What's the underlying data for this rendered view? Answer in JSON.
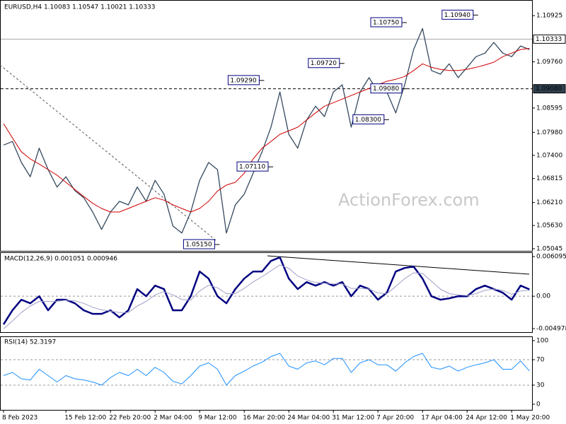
{
  "chart_data": [
    {
      "type": "line",
      "title": "EURUSD,H4  1.10083 1.10547 1.10021 1.10333",
      "watermark": "ActionForex.com",
      "categories": [
        "8 Feb 2023",
        null,
        null,
        null,
        null,
        null,
        null,
        "15 Feb 12:00",
        null,
        null,
        null,
        null,
        "22 Feb 20:00",
        null,
        null,
        null,
        null,
        "2 Mar 04:00",
        null,
        null,
        null,
        null,
        "9 Mar 12:00",
        null,
        null,
        null,
        null,
        "16 Mar 20:00",
        null,
        null,
        null,
        null,
        "24 Mar 04:00",
        null,
        null,
        null,
        null,
        "31 Mar 12:00",
        null,
        null,
        null,
        null,
        "7 Apr 20:00",
        null,
        null,
        null,
        null,
        "17 Apr 04:00",
        null,
        null,
        null,
        null,
        "24 Apr 12:00",
        null,
        null,
        null,
        null,
        "1 May 20:00",
        null,
        null
      ],
      "ylim": [
        1.0499,
        1.1132
      ],
      "yticks": [
        1.10925,
        {
          "value": 1.0976,
          "label": "1.09760"
        },
        1.08595,
        {
          "value": 1.0798,
          "label": "1.07980"
        },
        {
          "value": 1.074,
          "label": "1.07400"
        },
        1.06815,
        {
          "value": 1.0621,
          "label": "1.06210"
        },
        {
          "value": 1.0563,
          "label": "1.05630"
        },
        1.05045
      ],
      "hlines": [
        {
          "value": 1.10333,
          "label": "1.10333",
          "style": "solid"
        },
        {
          "value": 1.0908,
          "label": "1.09080",
          "style": "dashed"
        }
      ],
      "annotations": [
        {
          "x": 24,
          "value": 1.0515,
          "label": "1.05150"
        },
        {
          "x": 30,
          "value": 1.0711,
          "label": "1.07110"
        },
        {
          "x": 29,
          "value": 1.0929,
          "label": "1.09290"
        },
        {
          "x": 38,
          "value": 1.0972,
          "label": "1.09720"
        },
        {
          "x": 43,
          "value": 1.083,
          "label": "1.08300"
        },
        {
          "x": 45,
          "value": 1.0908,
          "label": "1.09080"
        },
        {
          "x": 45,
          "value": 1.1075,
          "label": "1.10750"
        },
        {
          "x": 53,
          "value": 1.1094,
          "label": "1.10940"
        }
      ],
      "series": [
        {
          "color": "#34495e",
          "width": 1.3,
          "values": [
            1.0766,
            1.0775,
            1.0722,
            1.0686,
            1.0758,
            1.0704,
            1.066,
            1.0686,
            1.0651,
            1.0633,
            1.0597,
            1.0553,
            1.0597,
            1.0624,
            1.0615,
            1.066,
            1.0624,
            1.0677,
            1.0642,
            1.0562,
            1.0544,
            1.0597,
            1.0677,
            1.0722,
            1.0704,
            1.0544,
            1.0615,
            1.0642,
            1.0695,
            1.0749,
            1.0811,
            1.09,
            1.0793,
            1.0758,
            1.0829,
            1.0864,
            1.0838,
            1.09,
            1.0918,
            1.0811,
            1.09,
            1.0936,
            1.09,
            1.09,
            1.0847,
            1.0918,
            1.1007,
            1.106,
            1.0954,
            1.0945,
            1.0971,
            1.0936,
            1.0962,
            1.0989,
            1.0998,
            1.1025,
            1.0998,
            1.0989,
            1.1016,
            1.1007
          ]
        },
        {
          "color": "#d00000",
          "width": 1,
          "values": [
            1.082,
            1.0784,
            1.0749,
            1.0731,
            1.0718,
            1.0704,
            1.069,
            1.0672,
            1.0654,
            1.0636,
            1.0619,
            1.0606,
            1.0597,
            1.0597,
            1.0606,
            1.0615,
            1.0624,
            1.0633,
            1.0627,
            1.0615,
            1.0606,
            1.0597,
            1.0606,
            1.0624,
            1.065,
            1.0665,
            1.0672,
            1.0695,
            1.0731,
            1.0758,
            1.0775,
            1.0793,
            1.0802,
            1.0811,
            1.0829,
            1.0847,
            1.0864,
            1.0873,
            1.0882,
            1.0891,
            1.09,
            1.0909,
            1.0918,
            1.0927,
            1.0932,
            1.0939,
            1.0954,
            1.0971,
            1.0962,
            1.0957,
            1.0954,
            1.0954,
            1.0957,
            1.0962,
            1.0968,
            1.0975,
            1.0989,
            1.0998,
            1.1007,
            1.101
          ]
        }
      ]
    },
    {
      "type": "line",
      "title": "MACD(12,26,9) 0.001051 0.000946",
      "ylim": [
        -0.00552,
        0.00675
      ],
      "yticks": [
        0.006095,
        {
          "value": 0,
          "label": "0.00"
        },
        -0.004978
      ],
      "levels": [
        0
      ],
      "series": [
        {
          "color": "#000080",
          "width": 2.5,
          "values": [
            -0.00434,
            -0.00217,
            -0.00054,
            -0.00109,
            0,
            -0.00217,
            -0.00054,
            -0.00054,
            -0.00109,
            -0.00217,
            -0.00271,
            -0.00271,
            -0.00217,
            -0.00326,
            -0.00217,
            0.00109,
            0,
            0.00163,
            0.00109,
            -0.00217,
            -0.00217,
            0,
            0.0038,
            0.00271,
            0,
            -0.00109,
            0.00109,
            0.00271,
            0.0038,
            0.0038,
            0.00543,
            0.00597,
            0.00271,
            0.00109,
            0.00217,
            0.00163,
            0.00217,
            0.00163,
            0.00217,
            0,
            0.00163,
            0.00109,
            -0.00054,
            0.00054,
            0.0038,
            0.00434,
            0.00456,
            0.00271,
            0,
            -0.00054,
            -0.00033,
            0,
            0,
            0.00109,
            0.00163,
            0.00109,
            0.00054,
            -0.00054,
            0.00163,
            0.00105
          ]
        },
        {
          "color": "#a0a0c8",
          "width": 1,
          "values": [
            -0.005,
            -0.0038,
            -0.0025,
            -0.0015,
            -0.0008,
            -0.0008,
            -0.0008,
            -0.0006,
            -0.0007,
            -0.0011,
            -0.0017,
            -0.0021,
            -0.0023,
            -0.0025,
            -0.0025,
            -0.0015,
            -0.0008,
            0.0002,
            0.0007,
            0.0002,
            -0.0005,
            -0.0006,
            0.0008,
            0.0017,
            0.0013,
            0.0004,
            0.0004,
            0.0012,
            0.0022,
            0.003,
            0.0039,
            0.0048,
            0.0043,
            0.0031,
            0.0025,
            0.0021,
            0.002,
            0.0019,
            0.0019,
            0.0012,
            0.0012,
            0.0011,
            0.0005,
            0.0004,
            0.0015,
            0.0027,
            0.0036,
            0.0035,
            0.0023,
            0.0011,
            0.0004,
            0.0002,
            0.0001,
            0.0004,
            0.0009,
            0.0011,
            0.0009,
            0.0003,
            0.0008,
            0.0009
          ]
        }
      ]
    },
    {
      "type": "line",
      "title": "RSI(14) 52.3197",
      "ylim": [
        -8.9,
        105.6
      ],
      "yticks": [
        100,
        70,
        30,
        0
      ],
      "levels": [
        70,
        30
      ],
      "series": [
        {
          "color": "#1e90ff",
          "width": 1,
          "values": [
            45,
            50,
            40,
            38,
            55,
            45,
            35,
            45,
            40,
            38,
            35,
            30,
            42,
            50,
            45,
            55,
            45,
            58,
            50,
            36,
            32,
            45,
            60,
            65,
            55,
            30,
            45,
            52,
            60,
            66,
            75,
            80,
            60,
            55,
            65,
            68,
            62,
            72,
            72,
            50,
            65,
            70,
            62,
            62,
            52,
            65,
            75,
            80,
            58,
            55,
            60,
            52,
            58,
            62,
            65,
            70,
            55,
            55,
            68,
            52.3197
          ]
        }
      ]
    }
  ]
}
